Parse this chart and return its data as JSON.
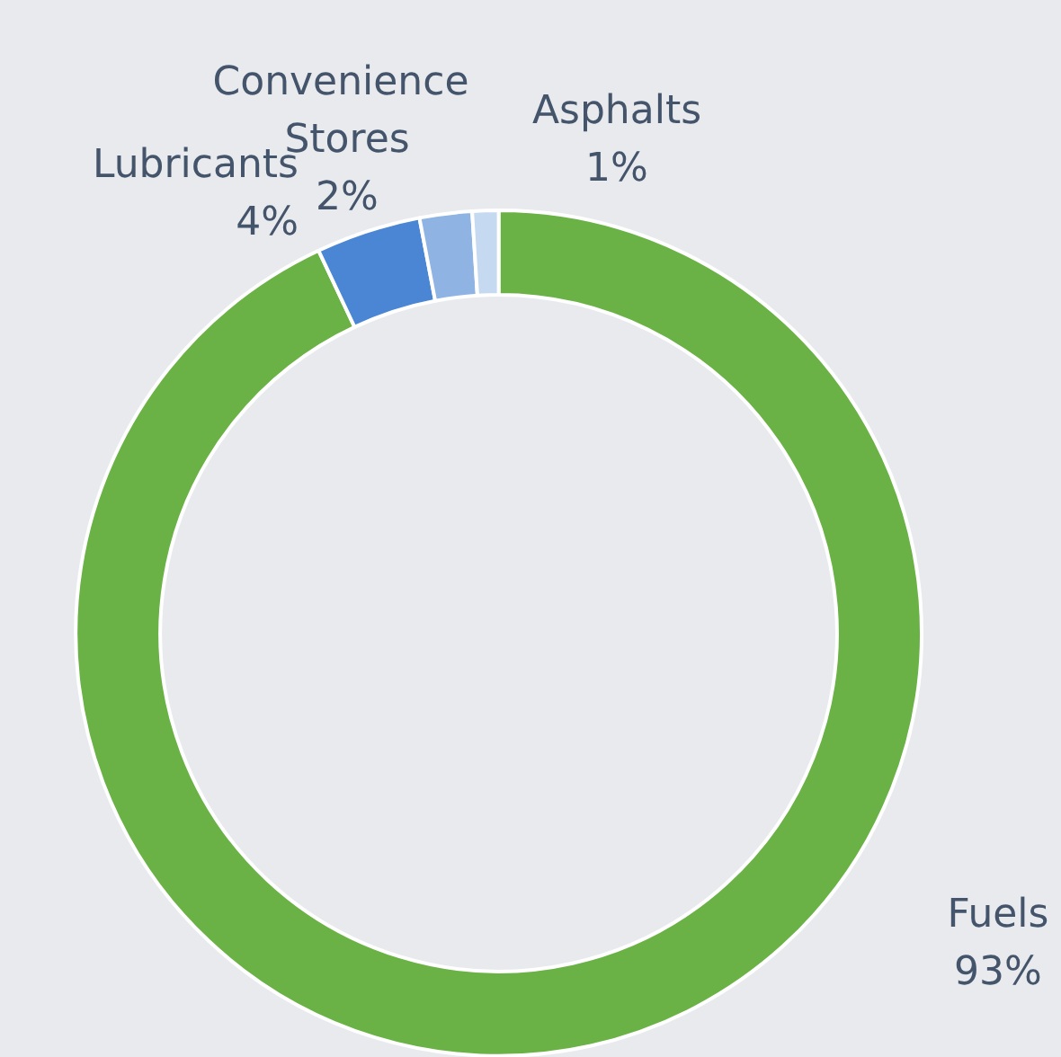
{
  "chart_data": {
    "type": "donut",
    "categories": [
      "Fuels",
      "Lubricants",
      "Convenience Stores",
      "Asphalts"
    ],
    "values": [
      93,
      4,
      2,
      1
    ],
    "value_labels": [
      "93%",
      "4%",
      "2%",
      "1%"
    ],
    "colors": [
      "#6ab245",
      "#4a86d4",
      "#8fb4e3",
      "#c5d9f1"
    ],
    "legend": false
  }
}
